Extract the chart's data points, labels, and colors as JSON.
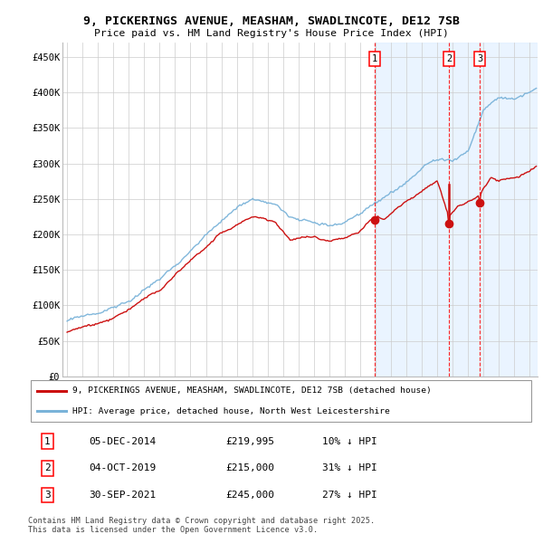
{
  "title_line1": "9, PICKERINGS AVENUE, MEASHAM, SWADLINCOTE, DE12 7SB",
  "title_line2": "Price paid vs. HM Land Registry's House Price Index (HPI)",
  "ylim": [
    0,
    470000
  ],
  "yticks": [
    0,
    50000,
    100000,
    150000,
    200000,
    250000,
    300000,
    350000,
    400000,
    450000
  ],
  "ytick_labels": [
    "£0",
    "£50K",
    "£100K",
    "£150K",
    "£200K",
    "£250K",
    "£300K",
    "£350K",
    "£400K",
    "£450K"
  ],
  "xlim_start": 1994.7,
  "xlim_end": 2025.5,
  "hpi_color": "#7ab3d9",
  "price_color": "#cc1111",
  "sale1_date": 2014.92,
  "sale1_price": 219995,
  "sale2_date": 2019.75,
  "sale2_price": 215000,
  "sale2_price_before": 270000,
  "sale3_date": 2021.75,
  "sale3_price": 245000,
  "sale1_label": "1",
  "sale2_label": "2",
  "sale3_label": "3",
  "sale1_info": "05-DEC-2014",
  "sale1_amount": "£219,995",
  "sale1_hpi": "10% ↓ HPI",
  "sale2_info": "04-OCT-2019",
  "sale2_amount": "£215,000",
  "sale2_hpi": "31% ↓ HPI",
  "sale3_info": "30-SEP-2021",
  "sale3_amount": "£245,000",
  "sale3_hpi": "27% ↓ HPI",
  "legend_label1": "9, PICKERINGS AVENUE, MEASHAM, SWADLINCOTE, DE12 7SB (detached house)",
  "legend_label2": "HPI: Average price, detached house, North West Leicestershire",
  "footnote_line1": "Contains HM Land Registry data © Crown copyright and database right 2025.",
  "footnote_line2": "This data is licensed under the Open Government Licence v3.0.",
  "background_color": "#ffffff",
  "shade_color": "#ddeeff",
  "grid_color": "#cccccc",
  "shade_alpha": 0.6
}
